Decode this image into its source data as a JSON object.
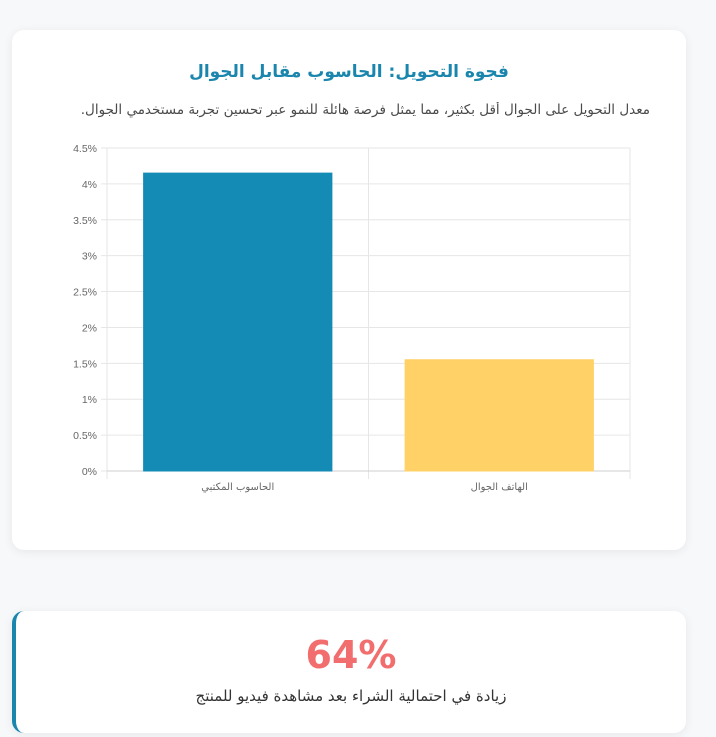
{
  "chart_card": {
    "title": "فجوة التحويل: الحاسوب مقابل الجوال",
    "subtitle": "معدل التحويل على الجوال أقل بكثير، مما يمثل فرصة هائلة للنمو عبر تحسين تجربة مستخدمي الجوال."
  },
  "chart_data": {
    "type": "bar",
    "categories": [
      "الحاسوب المكتبي",
      "الهاتف الجوال"
    ],
    "values": [
      4.15,
      1.55
    ],
    "colors": [
      "#138bb5",
      "#ffd166"
    ],
    "ylim": [
      0,
      4.5
    ],
    "yticks": [
      "0%",
      "0.5%",
      "1%",
      "1.5%",
      "2%",
      "2.5%",
      "3%",
      "3.5%",
      "4%",
      "4.5%"
    ],
    "grid": true,
    "xlabel": "",
    "ylabel": ""
  },
  "stat_card": {
    "value": "64%",
    "label": "زيادة في احتمالية الشراء بعد مشاهدة فيديو للمنتج",
    "accent": "#1a86ad",
    "value_color": "#f26d6d"
  }
}
